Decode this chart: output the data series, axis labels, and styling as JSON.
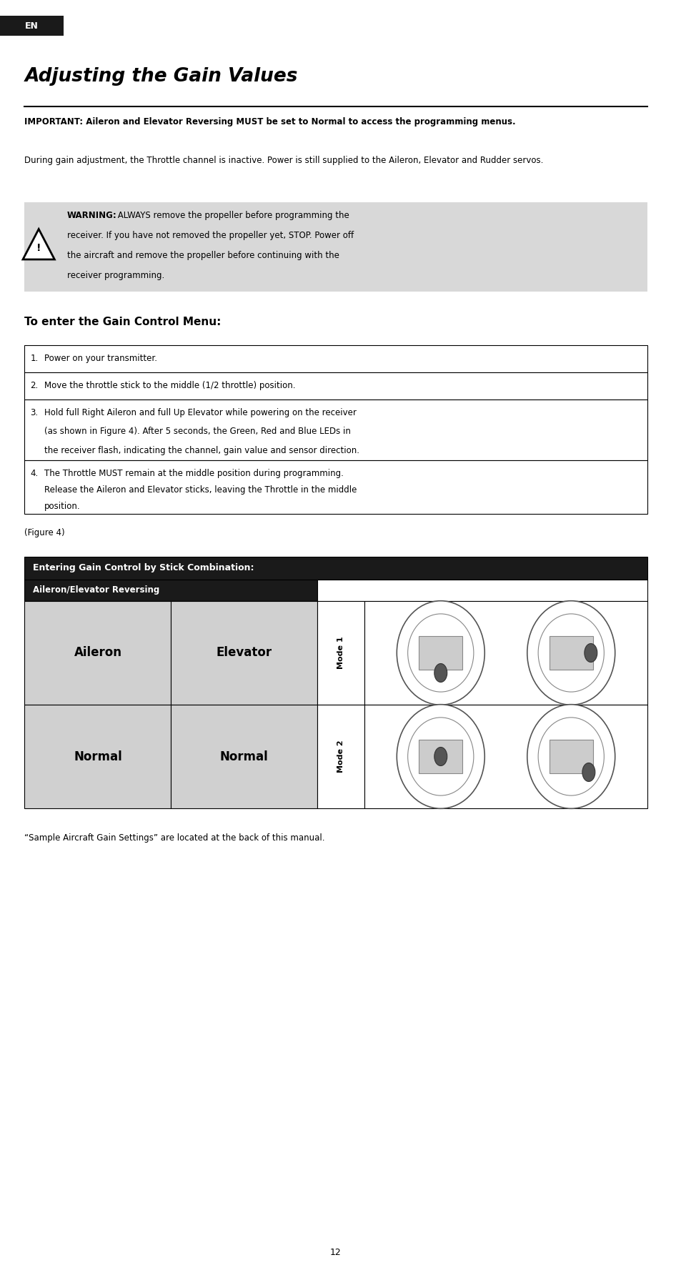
{
  "bg_color": "#ffffff",
  "page_width": 9.54,
  "page_height": 17.77,
  "en_bg": "#1a1a1a",
  "en_text": "EN",
  "title": "Adjusting the Gain Values",
  "important_bold": "IMPORTANT: Aileron and Elevator Reversing MUST be set to Normal to access the programming menus.",
  "important_normal": " During gain adjustment, the Throttle channel is inactive. Power is still supplied to the Aileron, Elevator and Rudder servos.",
  "warning_bg": "#d8d8d8",
  "warning_bold": "WARNING:",
  "warning_text": " ALWAYS remove the propeller before programming the receiver. If you have not removed the propeller yet, STOP. Power off the aircraft and remove the propeller before continuing with the receiver programming.",
  "gain_menu_title": "To enter the Gain Control Menu:",
  "steps": [
    "Power on your transmitter.",
    "Move the throttle stick to the middle (1/2 throttle) position.",
    "Hold full Right Aileron and full Up Elevator while powering on the receiver (as shown in Figure 4). After 5 seconds, the Green, Red and Blue LEDs in the receiver flash, indicating the channel, gain value and sensor direction.",
    "The Throttle MUST remain at the middle position during programming. Release the Aileron and Elevator sticks, leaving the Throttle in the middle position."
  ],
  "figure_label": "(Figure 4)",
  "table_header": "Entering Gain Control by Stick Combination:",
  "table_subheader": "Aileron/Elevator Reversing",
  "table_row1_col1": "Aileron",
  "table_row1_col2": "Elevator",
  "table_row1_mode": "Mode 1",
  "table_row2_col1": "Normal",
  "table_row2_col2": "Normal",
  "table_row2_mode": "Mode 2",
  "footer_text": "“Sample Aircraft Gain Settings” are located at the back of this manual.",
  "page_number": "12",
  "table_header_bg": "#1a1a1a",
  "table_subheader_bg": "#1a1a1a",
  "table_cell_bg": "#d0d0d0",
  "table_mode_bg": "#ffffff"
}
